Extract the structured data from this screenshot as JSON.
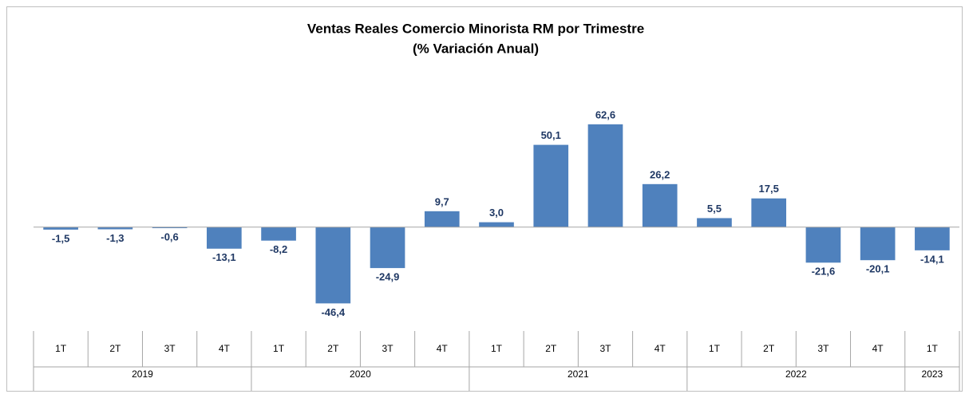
{
  "chart_data": {
    "type": "bar",
    "title": "Ventas Reales Comercio Minorista RM por Trimestre",
    "subtitle": "(% Variación Anual)",
    "categories": [
      "1T",
      "2T",
      "3T",
      "4T",
      "1T",
      "2T",
      "3T",
      "4T",
      "1T",
      "2T",
      "3T",
      "4T",
      "1T",
      "2T",
      "3T",
      "4T",
      "1T"
    ],
    "years": [
      "2019",
      "2019",
      "2019",
      "2019",
      "2020",
      "2020",
      "2020",
      "2020",
      "2021",
      "2021",
      "2021",
      "2021",
      "2022",
      "2022",
      "2022",
      "2022",
      "2023"
    ],
    "values": [
      -1.5,
      -1.3,
      -0.6,
      -13.1,
      -8.2,
      -46.4,
      -24.9,
      9.7,
      3.0,
      50.1,
      62.6,
      26.2,
      5.5,
      17.5,
      -21.6,
      -20.1,
      -14.1
    ],
    "value_labels": [
      "-1,5",
      "-1,3",
      "-0,6",
      "-13,1",
      "-8,2",
      "-46,4",
      "-24,9",
      "9,7",
      "3,0",
      "50,1",
      "62,6",
      "26,2",
      "5,5",
      "17,5",
      "-21,6",
      "-20,1",
      "-14,1"
    ],
    "color": "#4f81bd",
    "ylim": [
      -60,
      80
    ]
  }
}
